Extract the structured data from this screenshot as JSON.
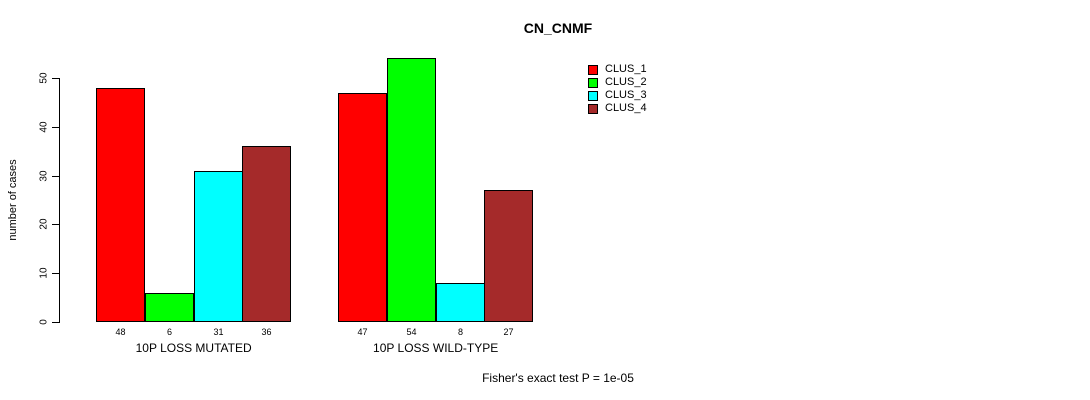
{
  "title": "CN_CNMF",
  "y_axis": {
    "label": "number of cases",
    "ticks": [
      0,
      10,
      20,
      30,
      40,
      50
    ]
  },
  "footer": {
    "note": "Fisher's exact test P = 1e-05"
  },
  "legend": {
    "items": [
      {
        "label": "CLUS_1",
        "color": "#FF0000"
      },
      {
        "label": "CLUS_2",
        "color": "#00FF00"
      },
      {
        "label": "CLUS_3",
        "color": "#00FFFF"
      },
      {
        "label": "CLUS_4",
        "color": "#A52A2A"
      }
    ]
  },
  "chart_data": {
    "type": "bar",
    "title": "CN_CNMF",
    "ylabel": "number of cases",
    "xlabel": "",
    "categories": [
      "10P LOSS MUTATED",
      "10P LOSS WILD-TYPE"
    ],
    "series": [
      {
        "name": "CLUS_1",
        "color": "#FF0000",
        "values": [
          48,
          47
        ]
      },
      {
        "name": "CLUS_2",
        "color": "#00FF00",
        "values": [
          6,
          54
        ]
      },
      {
        "name": "CLUS_3",
        "color": "#00FFFF",
        "values": [
          31,
          8
        ]
      },
      {
        "name": "CLUS_4",
        "color": "#A52A2A",
        "values": [
          36,
          27
        ]
      }
    ],
    "y_ticks": [
      0,
      10,
      20,
      30,
      40,
      50
    ],
    "ylim": [
      0,
      54
    ],
    "bar_value_labels": true,
    "grid": false,
    "legend_position": "top-right",
    "annotation": "Fisher's exact test P = 1e-05"
  }
}
